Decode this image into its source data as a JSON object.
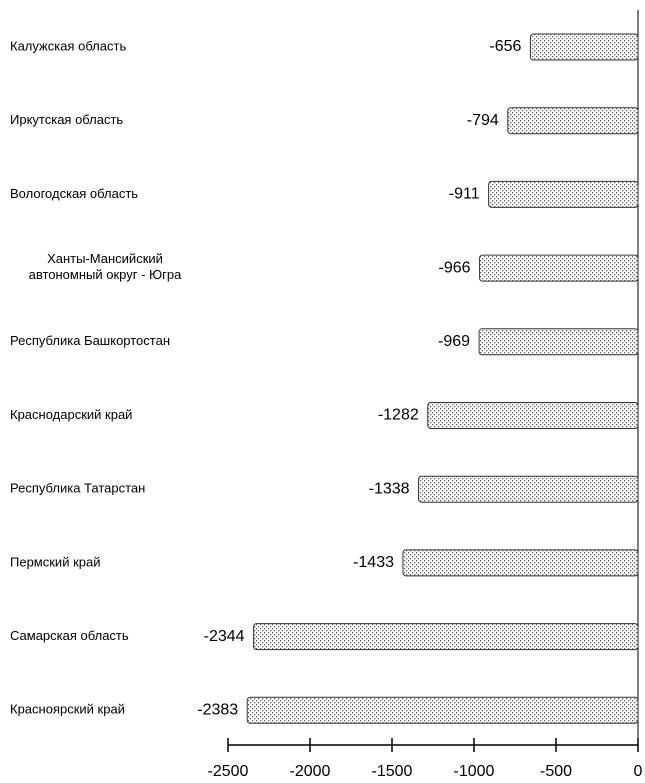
{
  "chart_data": {
    "type": "barh",
    "categories": [
      "Калужская область",
      "Иркутская область",
      "Вологодская область",
      "Ханты-Мансийский\nавтономный округ - Югра",
      "Республика Башкортостан",
      "Краснодарский край",
      "Республика Татарстан",
      "Пермский край",
      "Самарская область",
      "Красноярский край"
    ],
    "values": [
      -656,
      -794,
      -911,
      -966,
      -969,
      -1282,
      -1338,
      -1433,
      -2344,
      -2383
    ],
    "color": "#333333",
    "xlim": [
      -2500,
      0
    ],
    "xticks": [
      -2500,
      -2000,
      -1500,
      -1000,
      -500,
      0
    ],
    "grid": false
  }
}
